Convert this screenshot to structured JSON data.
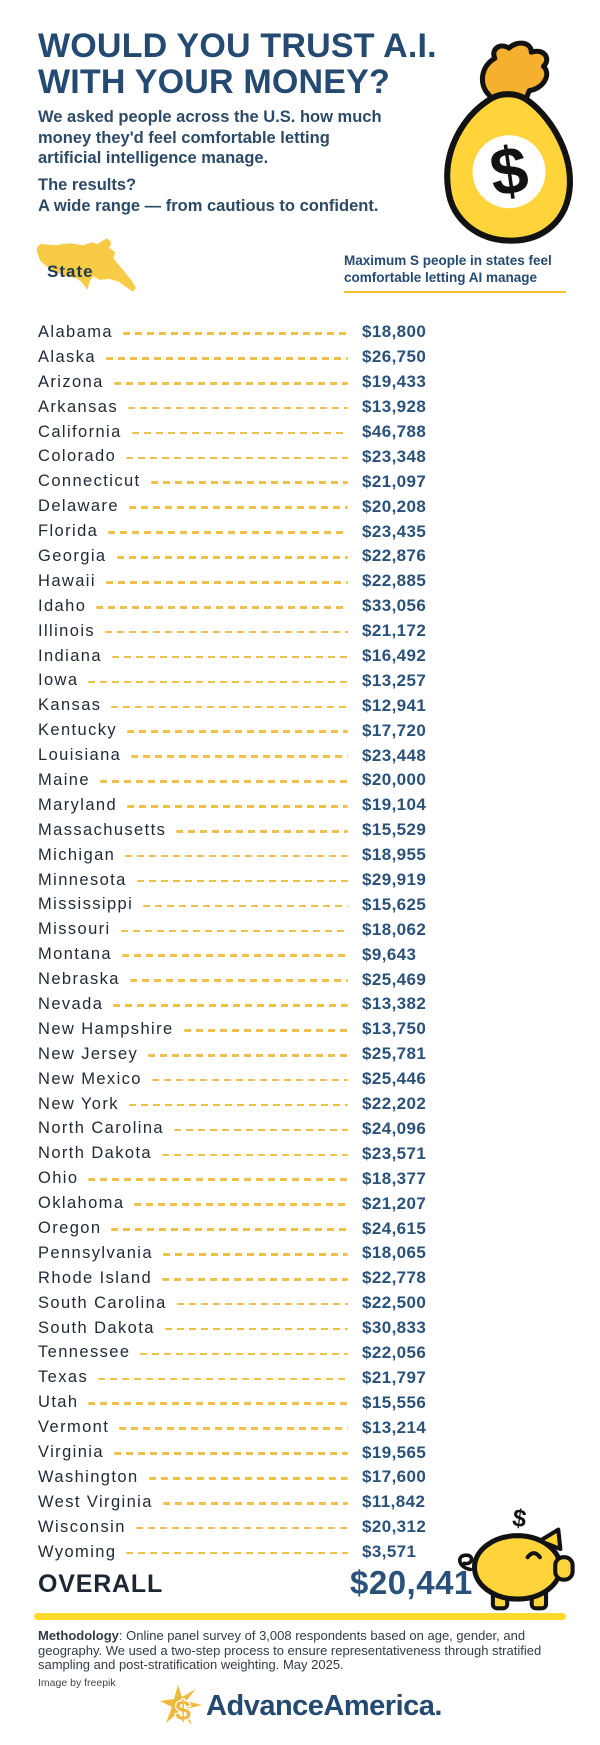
{
  "header": {
    "title_line1": "WOULD YOU TRUST A.I.",
    "title_line2": "WITH YOUR MONEY?",
    "intro_lines": [
      "We asked people across the U.S. how much",
      "money they'd feel comfortable letting",
      "artificial intelligence manage."
    ],
    "results_q": "The results?",
    "results_a": "A wide range — from cautious to confident."
  },
  "table": {
    "map_label": "State",
    "value_header_line1": "Maximum S people in states feel",
    "value_header_line2": "comfortable letting AI manage",
    "rows": [
      {
        "state": "Alabama",
        "value": "$18,800"
      },
      {
        "state": "Alaska",
        "value": "$26,750"
      },
      {
        "state": "Arizona",
        "value": "$19,433"
      },
      {
        "state": "Arkansas",
        "value": "$13,928"
      },
      {
        "state": "California",
        "value": "$46,788"
      },
      {
        "state": "Colorado",
        "value": "$23,348"
      },
      {
        "state": "Connecticut",
        "value": "$21,097"
      },
      {
        "state": "Delaware",
        "value": "$20,208"
      },
      {
        "state": "Florida",
        "value": "$23,435"
      },
      {
        "state": "Georgia",
        "value": "$22,876"
      },
      {
        "state": "Hawaii",
        "value": "$22,885"
      },
      {
        "state": "Idaho",
        "value": "$33,056"
      },
      {
        "state": "Illinois",
        "value": "$21,172"
      },
      {
        "state": "Indiana",
        "value": "$16,492"
      },
      {
        "state": "Iowa",
        "value": "$13,257"
      },
      {
        "state": "Kansas",
        "value": "$12,941"
      },
      {
        "state": "Kentucky",
        "value": "$17,720"
      },
      {
        "state": "Louisiana",
        "value": "$23,448"
      },
      {
        "state": "Maine",
        "value": "$20,000"
      },
      {
        "state": "Maryland",
        "value": "$19,104"
      },
      {
        "state": "Massachusetts",
        "value": "$15,529"
      },
      {
        "state": "Michigan",
        "value": "$18,955"
      },
      {
        "state": "Minnesota",
        "value": "$29,919"
      },
      {
        "state": "Mississippi",
        "value": "$15,625"
      },
      {
        "state": "Missouri",
        "value": "$18,062"
      },
      {
        "state": "Montana",
        "value": "$9,643"
      },
      {
        "state": "Nebraska",
        "value": "$25,469"
      },
      {
        "state": "Nevada",
        "value": "$13,382"
      },
      {
        "state": "New Hampshire",
        "value": "$13,750"
      },
      {
        "state": "New Jersey",
        "value": "$25,781"
      },
      {
        "state": "New Mexico",
        "value": "$25,446"
      },
      {
        "state": "New York",
        "value": "$22,202"
      },
      {
        "state": "North Carolina",
        "value": "$24,096"
      },
      {
        "state": "North Dakota",
        "value": "$23,571"
      },
      {
        "state": "Ohio",
        "value": "$18,377"
      },
      {
        "state": "Oklahoma",
        "value": "$21,207"
      },
      {
        "state": "Oregon",
        "value": "$24,615"
      },
      {
        "state": "Pennsylvania",
        "value": "$18,065"
      },
      {
        "state": "Rhode Island",
        "value": "$22,778"
      },
      {
        "state": "South Carolina",
        "value": "$22,500"
      },
      {
        "state": "South Dakota",
        "value": "$30,833"
      },
      {
        "state": "Tennessee",
        "value": "$22,056"
      },
      {
        "state": "Texas",
        "value": "$21,797"
      },
      {
        "state": "Utah",
        "value": "$15,556"
      },
      {
        "state": "Vermont",
        "value": "$13,214"
      },
      {
        "state": "Virginia",
        "value": "$19,565"
      },
      {
        "state": "Washington",
        "value": "$17,600"
      },
      {
        "state": "West Virginia",
        "value": "$11,842"
      },
      {
        "state": "Wisconsin",
        "value": "$20,312"
      },
      {
        "state": "Wyoming",
        "value": "$3,571"
      }
    ],
    "overall_label": "OVERALL",
    "overall_value": "$20,441"
  },
  "chart_data": {
    "type": "table",
    "title": "WOULD YOU TRUST A.I. WITH YOUR MONEY?",
    "value_label": "Maximum S people in states feel comfortable letting AI manage",
    "categories": [
      "Alabama",
      "Alaska",
      "Arizona",
      "Arkansas",
      "California",
      "Colorado",
      "Connecticut",
      "Delaware",
      "Florida",
      "Georgia",
      "Hawaii",
      "Idaho",
      "Illinois",
      "Indiana",
      "Iowa",
      "Kansas",
      "Kentucky",
      "Louisiana",
      "Maine",
      "Maryland",
      "Massachusetts",
      "Michigan",
      "Minnesota",
      "Mississippi",
      "Missouri",
      "Montana",
      "Nebraska",
      "Nevada",
      "New Hampshire",
      "New Jersey",
      "New Mexico",
      "New York",
      "North Carolina",
      "North Dakota",
      "Ohio",
      "Oklahoma",
      "Oregon",
      "Pennsylvania",
      "Rhode Island",
      "South Carolina",
      "South Dakota",
      "Tennessee",
      "Texas",
      "Utah",
      "Vermont",
      "Virginia",
      "Washington",
      "West Virginia",
      "Wisconsin",
      "Wyoming"
    ],
    "values": [
      18800,
      26750,
      19433,
      13928,
      46788,
      23348,
      21097,
      20208,
      23435,
      22876,
      22885,
      33056,
      21172,
      16492,
      13257,
      12941,
      17720,
      23448,
      20000,
      19104,
      15529,
      18955,
      29919,
      15625,
      18062,
      9643,
      25469,
      13382,
      13750,
      25781,
      25446,
      22202,
      24096,
      23571,
      18377,
      21207,
      24615,
      18065,
      22778,
      22500,
      30833,
      22056,
      21797,
      15556,
      13214,
      19565,
      17600,
      11842,
      20312,
      3571
    ],
    "overall": 20441
  },
  "icons": {
    "dollar_glyph": "$",
    "money_bag": "money-bag-icon",
    "piggy_bank": "piggy-bank-icon",
    "us_map": "us-map-icon"
  },
  "footer": {
    "methodology_label": "Methodology",
    "methodology_rest": ": Online panel survey of 3,008 respondents based on age, gender, and geography. We used a two-step process to ensure representativeness through stratified sampling and post-stratification weighting. May 2025.",
    "image_credit": "Image by freepik",
    "logo_text": "AdvanceAmerica."
  },
  "colors": {
    "navy": "#254a72",
    "value_navy": "#2a517a",
    "text_dark": "#212b36",
    "gold_dash": "#EFC04A",
    "yellow": "#FFD43B",
    "divider_yellow": "#FFD92B"
  }
}
